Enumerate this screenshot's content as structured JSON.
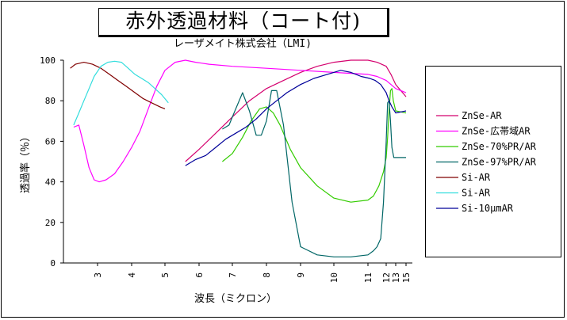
{
  "title": "赤外透過材料（コート付)",
  "subtitle": "レーザメイト株式会社（LMI)",
  "chart_data": {
    "type": "line",
    "ylabel": "透過率（％）",
    "xlabel": "波長（ミクロン）",
    "ylim": [
      0,
      100
    ],
    "yticks": [
      0,
      20,
      40,
      60,
      80,
      100
    ],
    "x_ticks": [
      "3",
      "4",
      "5",
      "6",
      "7",
      "8",
      "9",
      "10",
      "11",
      "12",
      "13",
      "15"
    ],
    "grid": false,
    "legend_position": "right",
    "series": [
      {
        "name": "ZnSe-AR",
        "color": "#d4006e",
        "points": [
          [
            5.6,
            50
          ],
          [
            6,
            56
          ],
          [
            6.5,
            64
          ],
          [
            7,
            72
          ],
          [
            7.5,
            80
          ],
          [
            8,
            86
          ],
          [
            8.5,
            90
          ],
          [
            9,
            94
          ],
          [
            9.5,
            97
          ],
          [
            10,
            99
          ],
          [
            10.5,
            100
          ],
          [
            11,
            100
          ],
          [
            11.5,
            99
          ],
          [
            12,
            97
          ],
          [
            12.5,
            93
          ],
          [
            13,
            88
          ],
          [
            15,
            82
          ]
        ]
      },
      {
        "name": "ZnSe-広帯域AR",
        "color": "#ff00ff",
        "points": [
          [
            2.3,
            67
          ],
          [
            2.45,
            68
          ],
          [
            2.6,
            58
          ],
          [
            2.75,
            47
          ],
          [
            2.9,
            41
          ],
          [
            3.05,
            40
          ],
          [
            3.25,
            41
          ],
          [
            3.5,
            44
          ],
          [
            3.75,
            50
          ],
          [
            4,
            57
          ],
          [
            4.25,
            65
          ],
          [
            4.5,
            76
          ],
          [
            4.75,
            87
          ],
          [
            5,
            95
          ],
          [
            5.3,
            99
          ],
          [
            5.6,
            100
          ],
          [
            5.9,
            99
          ],
          [
            6.3,
            98
          ],
          [
            7,
            97
          ],
          [
            8,
            96
          ],
          [
            9,
            95
          ],
          [
            10,
            94
          ],
          [
            11,
            93
          ],
          [
            11.5,
            92
          ],
          [
            12,
            90
          ],
          [
            12.5,
            88
          ],
          [
            13,
            86
          ],
          [
            15,
            84
          ]
        ]
      },
      {
        "name": "ZnSe-70%PR/AR",
        "color": "#33cc00",
        "points": [
          [
            6.7,
            50
          ],
          [
            7,
            54
          ],
          [
            7.3,
            62
          ],
          [
            7.55,
            70
          ],
          [
            7.8,
            76
          ],
          [
            8,
            77
          ],
          [
            8.2,
            74
          ],
          [
            8.4,
            68
          ],
          [
            8.7,
            56
          ],
          [
            9,
            47
          ],
          [
            9.5,
            38
          ],
          [
            10,
            32
          ],
          [
            10.5,
            30
          ],
          [
            11,
            31
          ],
          [
            11.3,
            33
          ],
          [
            11.6,
            38
          ],
          [
            11.85,
            45
          ],
          [
            12,
            52
          ],
          [
            12.15,
            62
          ],
          [
            12.3,
            75
          ],
          [
            12.45,
            85
          ],
          [
            12.6,
            86
          ],
          [
            12.75,
            80
          ],
          [
            13,
            75
          ],
          [
            15,
            74
          ]
        ]
      },
      {
        "name": "ZnSe-97%PR/AR",
        "color": "#006666",
        "points": [
          [
            6.7,
            66
          ],
          [
            6.9,
            68
          ],
          [
            7.1,
            76
          ],
          [
            7.3,
            84
          ],
          [
            7.5,
            75
          ],
          [
            7.7,
            63
          ],
          [
            7.85,
            63
          ],
          [
            8,
            70
          ],
          [
            8.15,
            85
          ],
          [
            8.3,
            85
          ],
          [
            8.5,
            68
          ],
          [
            8.75,
            30
          ],
          [
            9,
            8
          ],
          [
            9.5,
            4
          ],
          [
            10,
            3
          ],
          [
            10.5,
            3
          ],
          [
            11,
            4
          ],
          [
            11.3,
            6
          ],
          [
            11.5,
            8
          ],
          [
            11.7,
            12
          ],
          [
            11.85,
            30
          ],
          [
            12,
            60
          ],
          [
            12.15,
            79
          ],
          [
            12.3,
            80
          ],
          [
            12.45,
            70
          ],
          [
            12.6,
            57
          ],
          [
            12.8,
            52
          ],
          [
            15,
            52
          ]
        ]
      },
      {
        "name": "Si-AR",
        "color": "#800000",
        "points": [
          [
            2.2,
            96
          ],
          [
            2.35,
            98
          ],
          [
            2.6,
            99
          ],
          [
            2.85,
            98
          ],
          [
            3.1,
            96
          ],
          [
            3.35,
            93
          ],
          [
            3.6,
            90
          ],
          [
            3.85,
            87
          ],
          [
            4.1,
            84
          ],
          [
            4.35,
            81
          ],
          [
            4.6,
            79
          ],
          [
            4.85,
            77
          ],
          [
            5,
            76
          ]
        ]
      },
      {
        "name": "Si-AR",
        "color": "#33dddd",
        "points": [
          [
            2.3,
            68
          ],
          [
            2.45,
            74
          ],
          [
            2.6,
            80
          ],
          [
            2.75,
            86
          ],
          [
            2.9,
            92
          ],
          [
            3.1,
            97
          ],
          [
            3.3,
            99
          ],
          [
            3.5,
            99.5
          ],
          [
            3.7,
            99
          ],
          [
            3.9,
            96
          ],
          [
            4.1,
            93
          ],
          [
            4.3,
            91
          ],
          [
            4.5,
            89
          ],
          [
            4.7,
            86
          ],
          [
            4.9,
            83
          ],
          [
            5.1,
            79
          ]
        ]
      },
      {
        "name": "Si-10μmAR",
        "color": "#000099",
        "points": [
          [
            5.6,
            48
          ],
          [
            5.9,
            51
          ],
          [
            6.2,
            53
          ],
          [
            6.5,
            57
          ],
          [
            6.8,
            61
          ],
          [
            7.1,
            64
          ],
          [
            7.4,
            67
          ],
          [
            7.7,
            71
          ],
          [
            8,
            76
          ],
          [
            8.3,
            80
          ],
          [
            8.6,
            84
          ],
          [
            9,
            88
          ],
          [
            9.4,
            91
          ],
          [
            9.8,
            93
          ],
          [
            10.2,
            95
          ],
          [
            10.5,
            94
          ],
          [
            10.8,
            92
          ],
          [
            11.1,
            91
          ],
          [
            11.4,
            90
          ],
          [
            11.7,
            88
          ],
          [
            12,
            84
          ],
          [
            12.3,
            80
          ],
          [
            12.6,
            77
          ],
          [
            13,
            74
          ],
          [
            15,
            75
          ]
        ]
      }
    ]
  }
}
